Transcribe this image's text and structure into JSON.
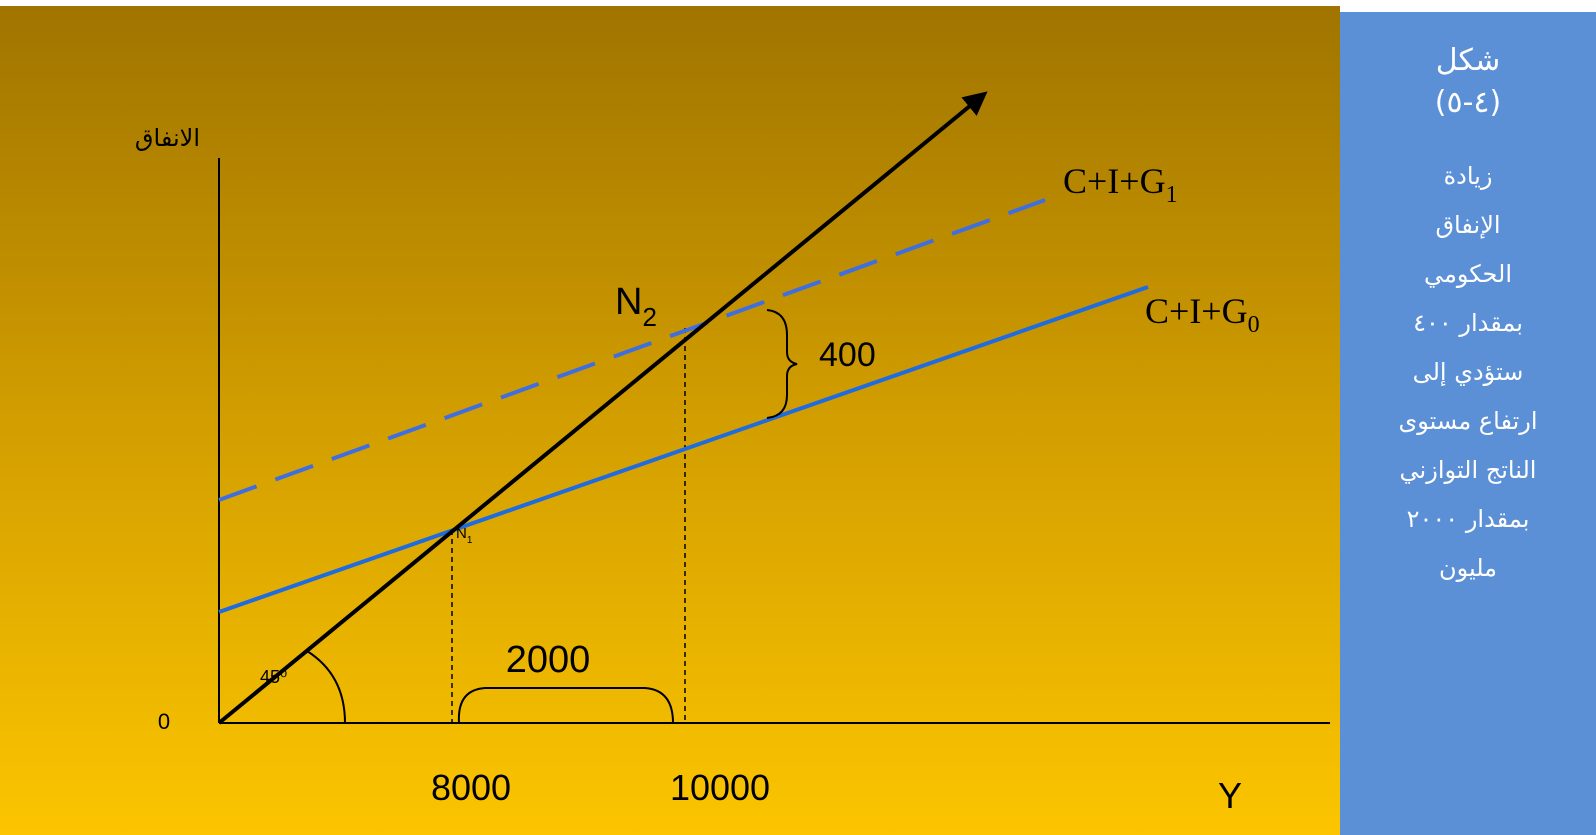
{
  "figure": {
    "title": "شكل",
    "number": "(٤-٥)",
    "description": [
      "زيادة",
      "الإنفاق",
      "الحكومي",
      "بمقدار ٤٠٠",
      "ستؤدي إلى",
      "ارتفاع مستوى",
      "الناتج التوازني",
      "بمقدار ٢٠٠٠",
      "مليون"
    ]
  },
  "diagram": {
    "y_axis_label": "الانفاق",
    "x_axis_label": "Y",
    "origin_label": "0",
    "angle_label": "45⁰",
    "curves": {
      "g0": {
        "base": "C+I+G",
        "sub": "0"
      },
      "g1": {
        "base": "C+I+G",
        "sub": "1"
      }
    },
    "points": {
      "n1": {
        "base": "N",
        "sub": "1"
      },
      "n2": {
        "base": "N",
        "sub": "2"
      }
    },
    "x_ticks": {
      "y1": "8000",
      "y2": "10000"
    },
    "spending_increase": "400",
    "output_increase": "2000"
  },
  "colors": {
    "background_top": "#a07400",
    "background_bottom": "#fcc500",
    "panel": "#5b8fd6",
    "curve": "#1f6be0",
    "dashed_curve": "#3f6ee0",
    "axis": "#000000"
  }
}
